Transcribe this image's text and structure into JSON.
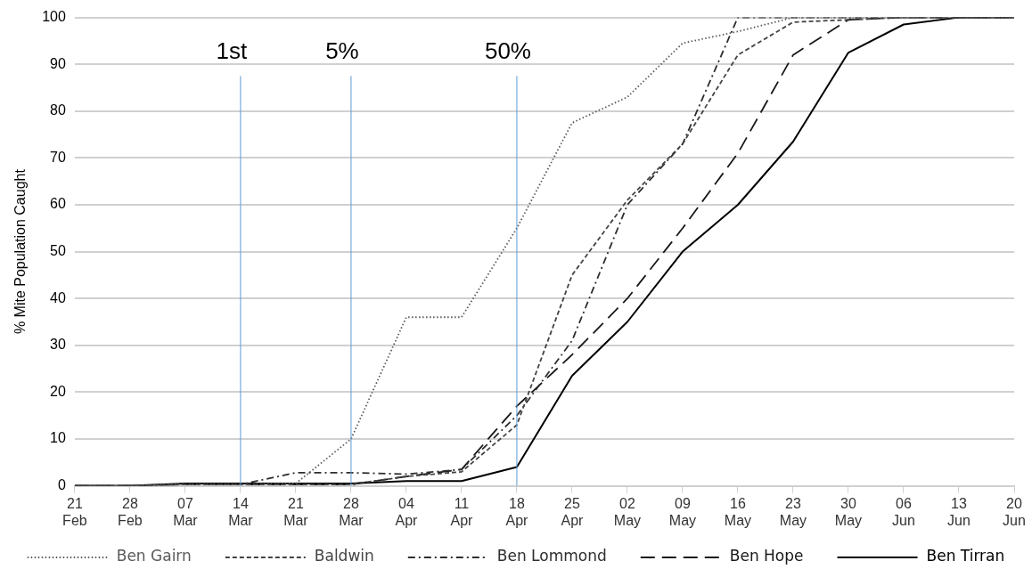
{
  "chart_data": {
    "type": "line",
    "ylabel": "% Mite Population Caught",
    "categories": [
      "21 Feb",
      "28 Feb",
      "07 Mar",
      "14 Mar",
      "21 Mar",
      "28 Mar",
      "04 Apr",
      "11 Apr",
      "18 Apr",
      "25 Apr",
      "02 May",
      "09 May",
      "16 May",
      "23 May",
      "30 May",
      "06 Jun",
      "13 Jun",
      "20 Jun"
    ],
    "series": [
      {
        "name": "Ben Gairn",
        "color": "#5a5a5a",
        "line_style": "dotted",
        "values": [
          0,
          0,
          0.3,
          0.3,
          0.5,
          10,
          36,
          36,
          55,
          77.5,
          83,
          94.5,
          97,
          100,
          100,
          100,
          100,
          100
        ]
      },
      {
        "name": "Baldwin",
        "color": "#444444",
        "line_style": "dashed",
        "values": [
          0,
          0,
          0.3,
          0.3,
          0.3,
          0.3,
          2,
          3,
          13,
          45,
          61,
          73,
          92,
          99,
          99.5,
          100,
          100,
          100
        ]
      },
      {
        "name": "Ben Lommond",
        "color": "#2e2e2e",
        "line_style": "dashdot",
        "values": [
          0,
          0,
          0.3,
          0.3,
          2.8,
          2.8,
          2.5,
          3.5,
          15,
          31,
          60,
          73,
          100,
          100,
          100,
          100,
          100,
          100
        ]
      },
      {
        "name": "Ben Hope",
        "color": "#181818",
        "line_style": "longdash",
        "values": [
          0,
          0,
          0.3,
          0.3,
          0.3,
          0.3,
          2,
          3.5,
          17,
          28,
          40,
          55,
          71,
          92,
          99.5,
          100,
          100,
          100
        ]
      },
      {
        "name": "Ben Tirran",
        "color": "#000000",
        "line_style": "solid",
        "values": [
          0,
          0,
          0.5,
          0.5,
          0.5,
          0.5,
          1,
          1,
          4,
          23.5,
          35,
          50,
          60,
          73.5,
          92.5,
          98.5,
          100,
          100
        ]
      }
    ],
    "ref_lines": [
      {
        "axis": "x",
        "value": "14 Mar",
        "label": "1st",
        "color": "#5b9bd5"
      },
      {
        "axis": "x",
        "value": "28 Mar",
        "label": "5%",
        "color": "#5b9bd5"
      },
      {
        "axis": "x",
        "value": "18 Apr",
        "label": "50%",
        "color": "#5b9bd5"
      }
    ],
    "ylim": [
      0,
      100
    ],
    "yticks": [
      0,
      10,
      20,
      30,
      40,
      50,
      60,
      70,
      80,
      90,
      100
    ],
    "grid": "y",
    "legend": "bottom",
    "marker": "none"
  }
}
